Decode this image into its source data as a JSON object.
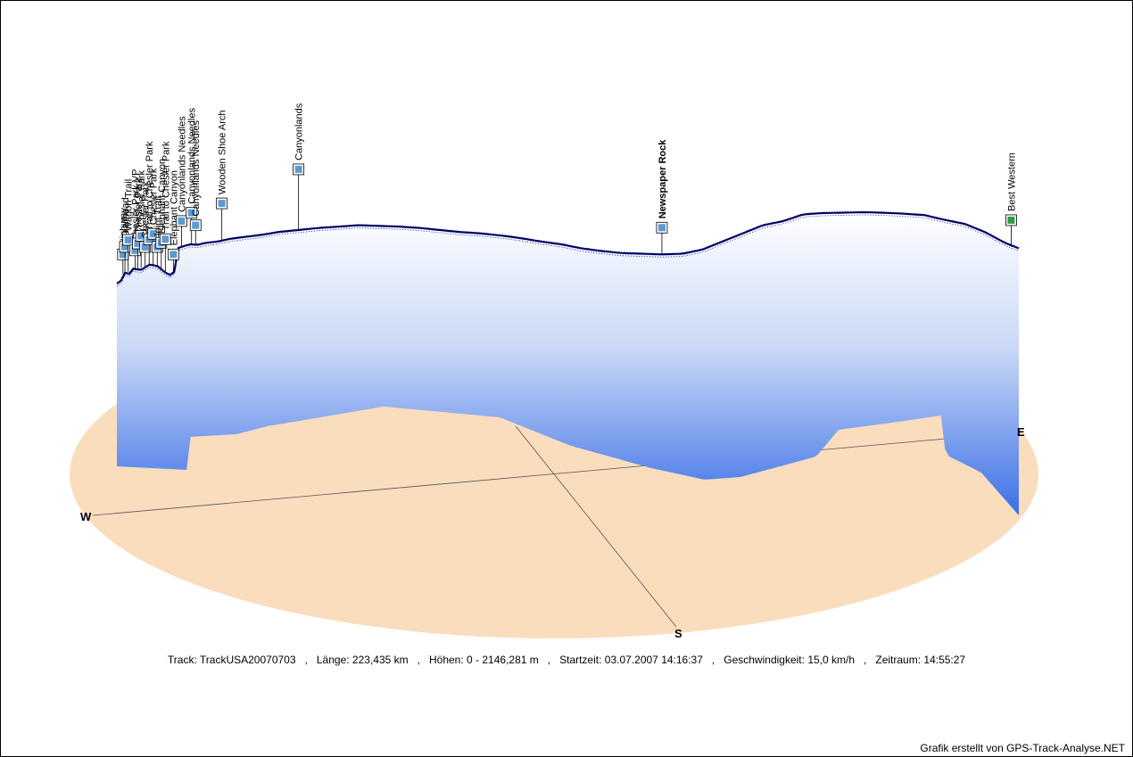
{
  "chart_data": {
    "type": "area",
    "title": "",
    "compass": {
      "west": "W",
      "south": "S",
      "east": "E"
    },
    "track": {
      "name": "TrackUSA20070703",
      "length": "223,435 km",
      "elevation_range": "0 - 2146,281 m",
      "start_time": "03.07.2007 14:16:37",
      "speed": "15,0 km/h",
      "duration": "14:55:27"
    },
    "info_labels": {
      "track": "Track:",
      "length": "Länge:",
      "elevation": "Höhen:",
      "start": "Startzeit:",
      "speed": "Geschwindigkeit:",
      "duration": "Zeitraum:"
    },
    "x_unit": "km",
    "y_unit": "m",
    "elevation_profile": [
      [
        0,
        1620
      ],
      [
        1,
        1640
      ],
      [
        2,
        1700
      ],
      [
        3,
        1690
      ],
      [
        4,
        1730
      ],
      [
        6,
        1720
      ],
      [
        8,
        1760
      ],
      [
        10,
        1750
      ],
      [
        12,
        1700
      ],
      [
        13,
        1690
      ],
      [
        14,
        1660
      ],
      [
        15,
        1880
      ],
      [
        16,
        1890
      ],
      [
        18,
        1910
      ],
      [
        20,
        1905
      ],
      [
        22,
        1920
      ],
      [
        25,
        1930
      ],
      [
        28,
        1950
      ],
      [
        32,
        1965
      ],
      [
        36,
        1980
      ],
      [
        40,
        2000
      ],
      [
        45,
        2015
      ],
      [
        50,
        2030
      ],
      [
        55,
        2040
      ],
      [
        60,
        2050
      ],
      [
        65,
        2045
      ],
      [
        70,
        2040
      ],
      [
        75,
        2030
      ],
      [
        80,
        2015
      ],
      [
        85,
        2000
      ],
      [
        90,
        1990
      ],
      [
        95,
        1975
      ],
      [
        100,
        1955
      ],
      [
        105,
        1930
      ],
      [
        110,
        1910
      ],
      [
        115,
        1880
      ],
      [
        120,
        1860
      ],
      [
        125,
        1845
      ],
      [
        130,
        1840
      ],
      [
        135,
        1835
      ],
      [
        140,
        1840
      ],
      [
        145,
        1870
      ],
      [
        150,
        1930
      ],
      [
        155,
        1990
      ],
      [
        160,
        2050
      ],
      [
        165,
        2080
      ],
      [
        170,
        2130
      ],
      [
        175,
        2140
      ],
      [
        180,
        2143
      ],
      [
        185,
        2146
      ],
      [
        190,
        2142
      ],
      [
        195,
        2135
      ],
      [
        200,
        2125
      ],
      [
        205,
        2090
      ],
      [
        210,
        2060
      ],
      [
        215,
        2000
      ],
      [
        220,
        1920
      ],
      [
        223.4,
        1880
      ]
    ],
    "waypoints": [
      {
        "name": "Highway",
        "km": 1.5,
        "elevation": 1690
      },
      {
        "name": "Trailhead",
        "km": 2.0,
        "elevation": 1700
      },
      {
        "name": "Wagon Trail",
        "km": 2.8,
        "elevation": 1705
      },
      {
        "name": "Chesler Park VP",
        "km": 4.5,
        "elevation": 1720
      },
      {
        "name": "Chesler Park",
        "km": 5.2,
        "elevation": 1725
      },
      {
        "name": "Chesler Park",
        "km": 6.0,
        "elevation": 1735
      },
      {
        "name": "Chesler Park",
        "km": 7.0,
        "elevation": 1745
      },
      {
        "name": "Trail to Chesler Park",
        "km": 8.0,
        "elevation": 1755
      },
      {
        "name": "Chesler Park",
        "km": 9.0,
        "elevation": 1750
      },
      {
        "name": "Joint Trail",
        "km": 10.0,
        "elevation": 1745
      },
      {
        "name": "Elephant Canyon",
        "km": 11.0,
        "elevation": 1730
      },
      {
        "name": "Trail to Chesler Park",
        "km": 12.0,
        "elevation": 1710
      },
      {
        "name": "Elephant Canyon",
        "km": 14.0,
        "elevation": 1690
      },
      {
        "name": "Canyonlands Needles",
        "km": 16.0,
        "elevation": 1890
      },
      {
        "name": "Canyonlands Needles",
        "km": 18.5,
        "elevation": 1905
      },
      {
        "name": "Canyonlands Needles",
        "km": 19.5,
        "elevation": 1905
      },
      {
        "name": "Wooden Shoe Arch",
        "km": 26.0,
        "elevation": 1935
      },
      {
        "name": "Canyonlands",
        "km": 45.0,
        "elevation": 2015
      },
      {
        "name": "Newspaper Rock",
        "km": 135.0,
        "elevation": 1835
      },
      {
        "name": "Best Western",
        "km": 221.5,
        "elevation": 1890
      }
    ],
    "colors": {
      "ground": "#f9ddbd",
      "profile_line": "#000066",
      "curtain_top": "#ffffff",
      "curtain_bottom": "#3a6fe6",
      "marker": "#5b9bd5"
    }
  },
  "footer": "Grafik erstellt von GPS-Track-Analyse.NET"
}
